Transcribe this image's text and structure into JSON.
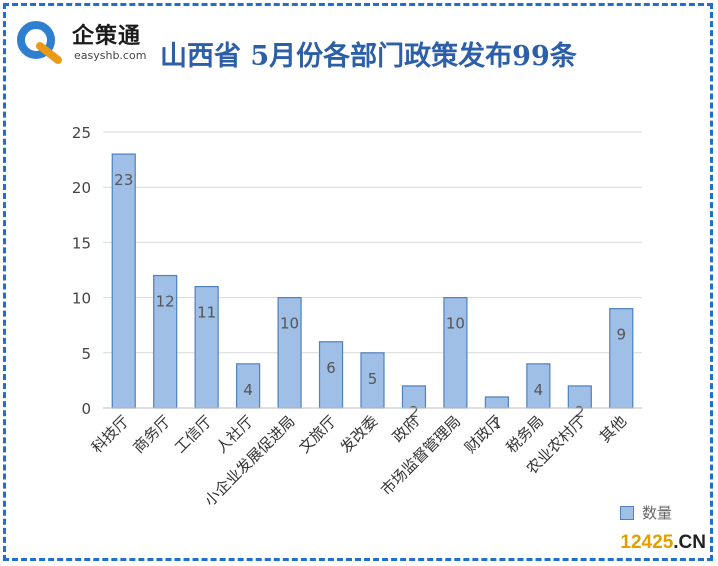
{
  "logo": {
    "name_cn": "企策通",
    "domain_text": "easyshb.com"
  },
  "watermark": {
    "number": "12425",
    "suffix": ".CN"
  },
  "colors": {
    "bar_fill": "#9fbfe6",
    "bar_stroke": "#4f81bd",
    "title": "#2c5fa8",
    "border": "#1f6fd1"
  },
  "chart_data": {
    "type": "bar",
    "title": "山西省 5月份各部门政策发布99条",
    "categories": [
      "科技厅",
      "商务厅",
      "工信厅",
      "人社厅",
      "小企业发展促进局",
      "文旅厅",
      "发改委",
      "政府",
      "市场监督管理局",
      "财政厅",
      "税务局",
      "农业农村厅",
      "其他"
    ],
    "series": [
      {
        "name": "数量",
        "values": [
          23,
          12,
          11,
          4,
          10,
          6,
          5,
          2,
          10,
          1,
          4,
          2,
          9
        ]
      }
    ],
    "yticks": [
      "0",
      "5",
      "10",
      "15",
      "20",
      "25"
    ],
    "ylim": [
      0,
      25
    ],
    "grid": true,
    "legend_position": "bottom-right"
  }
}
